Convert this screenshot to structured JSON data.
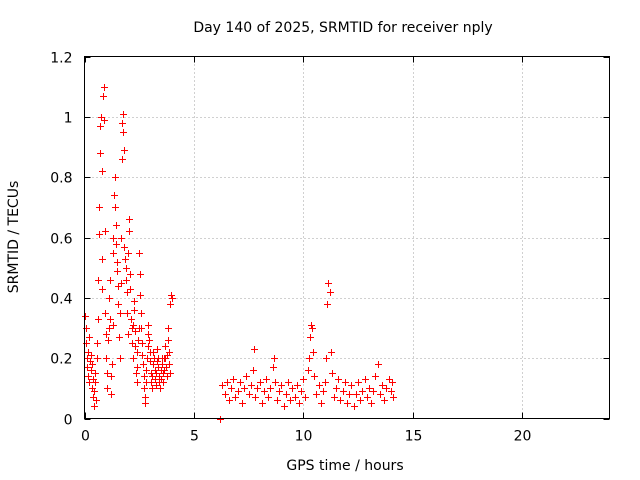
{
  "chart_data": {
    "type": "scatter",
    "title": "Day 140 of 2025, SRMTID for receiver nply",
    "xlabel": "GPS time / hours",
    "ylabel": "SRMTID / TECUs",
    "xlim": [
      0,
      24
    ],
    "ylim": [
      0,
      1.2
    ],
    "xticks": [
      0,
      5,
      10,
      15,
      20
    ],
    "xtick_labels": [
      "0",
      "5",
      "10",
      "15",
      "20"
    ],
    "yticks": [
      0,
      0.2,
      0.4,
      0.6,
      0.8,
      1,
      1.2
    ],
    "ytick_labels": [
      "0",
      "0.2",
      "0.4",
      "0.6",
      "0.8",
      "1",
      "1.2"
    ],
    "grid": true,
    "marker": "+",
    "marker_color": "#ff0000",
    "series": [
      {
        "name": "SRMTID",
        "points": [
          [
            0.02,
            0.34
          ],
          [
            0.05,
            0.3
          ],
          [
            0.08,
            0.25
          ],
          [
            0.1,
            0.2
          ],
          [
            0.12,
            0.17
          ],
          [
            0.15,
            0.22
          ],
          [
            0.18,
            0.14
          ],
          [
            0.2,
            0.27
          ],
          [
            0.22,
            0.12
          ],
          [
            0.25,
            0.19
          ],
          [
            0.28,
            0.21
          ],
          [
            0.3,
            0.16
          ],
          [
            0.32,
            0.1
          ],
          [
            0.35,
            0.18
          ],
          [
            0.38,
            0.13
          ],
          [
            0.4,
            0.07
          ],
          [
            0.42,
            0.09
          ],
          [
            0.45,
            0.04
          ],
          [
            0.48,
            0.15
          ],
          [
            0.5,
            0.12
          ],
          [
            0.52,
            0.06
          ],
          [
            0.55,
            0.2
          ],
          [
            0.58,
            0.25
          ],
          [
            0.6,
            0.33
          ],
          [
            0.62,
            0.46
          ],
          [
            0.65,
            0.61
          ],
          [
            0.68,
            0.7
          ],
          [
            0.7,
            0.88
          ],
          [
            0.72,
            0.97
          ],
          [
            0.75,
            1.0
          ],
          [
            0.78,
            0.82
          ],
          [
            0.8,
            0.53
          ],
          [
            0.82,
            0.43
          ],
          [
            0.85,
            1.07
          ],
          [
            0.88,
            1.1
          ],
          [
            0.9,
            0.99
          ],
          [
            0.92,
            0.62
          ],
          [
            0.95,
            0.35
          ],
          [
            0.98,
            0.28
          ],
          [
            1.0,
            0.2
          ],
          [
            1.02,
            0.15
          ],
          [
            1.05,
            0.1
          ],
          [
            1.08,
            0.26
          ],
          [
            1.1,
            0.3
          ],
          [
            1.12,
            0.4
          ],
          [
            1.15,
            0.46
          ],
          [
            1.18,
            0.33
          ],
          [
            1.2,
            0.14
          ],
          [
            1.22,
            0.08
          ],
          [
            1.25,
            0.18
          ],
          [
            1.28,
            0.31
          ],
          [
            1.3,
            0.55
          ],
          [
            1.32,
            0.6
          ],
          [
            1.35,
            0.74
          ],
          [
            1.38,
            0.8
          ],
          [
            1.4,
            0.7
          ],
          [
            1.42,
            0.64
          ],
          [
            1.45,
            0.58
          ],
          [
            1.48,
            0.52
          ],
          [
            1.5,
            0.49
          ],
          [
            1.52,
            0.44
          ],
          [
            1.55,
            0.38
          ],
          [
            1.58,
            0.27
          ],
          [
            1.6,
            0.2
          ],
          [
            1.62,
            0.35
          ],
          [
            1.65,
            0.45
          ],
          [
            1.68,
            0.6
          ],
          [
            1.7,
            0.86
          ],
          [
            1.72,
            0.98
          ],
          [
            1.75,
            1.01
          ],
          [
            1.78,
            0.95
          ],
          [
            1.8,
            0.89
          ],
          [
            1.82,
            0.57
          ],
          [
            1.85,
            0.53
          ],
          [
            1.88,
            0.5
          ],
          [
            1.9,
            0.46
          ],
          [
            1.92,
            0.42
          ],
          [
            1.95,
            0.35
          ],
          [
            1.98,
            0.28
          ],
          [
            2.0,
            0.55
          ],
          [
            2.02,
            0.62
          ],
          [
            2.05,
            0.66
          ],
          [
            2.08,
            0.48
          ],
          [
            2.1,
            0.43
          ],
          [
            2.12,
            0.33
          ],
          [
            2.15,
            0.3
          ],
          [
            2.18,
            0.25
          ],
          [
            2.2,
            0.2
          ],
          [
            2.22,
            0.31
          ],
          [
            2.25,
            0.36
          ],
          [
            2.28,
            0.39
          ],
          [
            2.3,
            0.29
          ],
          [
            2.32,
            0.24
          ],
          [
            2.35,
            0.15
          ],
          [
            2.38,
            0.12
          ],
          [
            2.4,
            0.17
          ],
          [
            2.42,
            0.22
          ],
          [
            2.45,
            0.26
          ],
          [
            2.48,
            0.3
          ],
          [
            2.5,
            0.55
          ],
          [
            2.52,
            0.48
          ],
          [
            2.55,
            0.41
          ],
          [
            2.58,
            0.35
          ],
          [
            2.6,
            0.3
          ],
          [
            2.62,
            0.25
          ],
          [
            2.65,
            0.21
          ],
          [
            2.68,
            0.18
          ],
          [
            2.7,
            0.14
          ],
          [
            2.72,
            0.1
          ],
          [
            2.75,
            0.07
          ],
          [
            2.78,
            0.05
          ],
          [
            2.8,
            0.12
          ],
          [
            2.82,
            0.16
          ],
          [
            2.85,
            0.2
          ],
          [
            2.88,
            0.24
          ],
          [
            2.9,
            0.28
          ],
          [
            2.92,
            0.31
          ],
          [
            2.95,
            0.26
          ],
          [
            2.98,
            0.22
          ],
          [
            3.0,
            0.19
          ],
          [
            3.02,
            0.15
          ],
          [
            3.05,
            0.12
          ],
          [
            3.08,
            0.1
          ],
          [
            3.1,
            0.14
          ],
          [
            3.12,
            0.18
          ],
          [
            3.15,
            0.22
          ],
          [
            3.18,
            0.2
          ],
          [
            3.2,
            0.16
          ],
          [
            3.22,
            0.13
          ],
          [
            3.25,
            0.11
          ],
          [
            3.28,
            0.15
          ],
          [
            3.3,
            0.19
          ],
          [
            3.32,
            0.23
          ],
          [
            3.35,
            0.2
          ],
          [
            3.38,
            0.17
          ],
          [
            3.4,
            0.14
          ],
          [
            3.42,
            0.12
          ],
          [
            3.45,
            0.1
          ],
          [
            3.48,
            0.13
          ],
          [
            3.5,
            0.16
          ],
          [
            3.52,
            0.2
          ],
          [
            3.55,
            0.18
          ],
          [
            3.58,
            0.15
          ],
          [
            3.6,
            0.12
          ],
          [
            3.62,
            0.16
          ],
          [
            3.65,
            0.2
          ],
          [
            3.68,
            0.24
          ],
          [
            3.7,
            0.2
          ],
          [
            3.72,
            0.17
          ],
          [
            3.75,
            0.14
          ],
          [
            3.78,
            0.21
          ],
          [
            3.8,
            0.26
          ],
          [
            3.82,
            0.3
          ],
          [
            3.85,
            0.22
          ],
          [
            3.88,
            0.18
          ],
          [
            3.9,
            0.15
          ],
          [
            3.92,
            0.38
          ],
          [
            3.95,
            0.41
          ],
          [
            3.98,
            0.4
          ],
          [
            6.2,
            0.0
          ],
          [
            6.3,
            0.11
          ],
          [
            6.4,
            0.08
          ],
          [
            6.5,
            0.12
          ],
          [
            6.6,
            0.06
          ],
          [
            6.7,
            0.1
          ],
          [
            6.8,
            0.13
          ],
          [
            6.9,
            0.07
          ],
          [
            7.0,
            0.09
          ],
          [
            7.1,
            0.12
          ],
          [
            7.2,
            0.05
          ],
          [
            7.3,
            0.1
          ],
          [
            7.4,
            0.14
          ],
          [
            7.5,
            0.08
          ],
          [
            7.6,
            0.11
          ],
          [
            7.7,
            0.16
          ],
          [
            7.75,
            0.23
          ],
          [
            7.8,
            0.07
          ],
          [
            7.9,
            0.1
          ],
          [
            8.0,
            0.12
          ],
          [
            8.1,
            0.05
          ],
          [
            8.2,
            0.09
          ],
          [
            8.3,
            0.13
          ],
          [
            8.4,
            0.07
          ],
          [
            8.5,
            0.1
          ],
          [
            8.6,
            0.17
          ],
          [
            8.65,
            0.2
          ],
          [
            8.7,
            0.12
          ],
          [
            8.8,
            0.06
          ],
          [
            8.9,
            0.09
          ],
          [
            9.0,
            0.11
          ],
          [
            9.1,
            0.04
          ],
          [
            9.2,
            0.08
          ],
          [
            9.3,
            0.12
          ],
          [
            9.4,
            0.06
          ],
          [
            9.5,
            0.1
          ],
          [
            9.6,
            0.07
          ],
          [
            9.7,
            0.11
          ],
          [
            9.8,
            0.05
          ],
          [
            9.9,
            0.09
          ],
          [
            10.0,
            0.13
          ],
          [
            10.1,
            0.07
          ],
          [
            10.2,
            0.16
          ],
          [
            10.25,
            0.2
          ],
          [
            10.3,
            0.27
          ],
          [
            10.35,
            0.31
          ],
          [
            10.4,
            0.3
          ],
          [
            10.45,
            0.22
          ],
          [
            10.5,
            0.14
          ],
          [
            10.6,
            0.08
          ],
          [
            10.7,
            0.11
          ],
          [
            10.8,
            0.05
          ],
          [
            10.9,
            0.09
          ],
          [
            11.0,
            0.12
          ],
          [
            11.05,
            0.2
          ],
          [
            11.1,
            0.38
          ],
          [
            11.15,
            0.45
          ],
          [
            11.2,
            0.42
          ],
          [
            11.25,
            0.22
          ],
          [
            11.3,
            0.15
          ],
          [
            11.4,
            0.07
          ],
          [
            11.5,
            0.1
          ],
          [
            11.6,
            0.13
          ],
          [
            11.7,
            0.06
          ],
          [
            11.8,
            0.09
          ],
          [
            11.9,
            0.12
          ],
          [
            12.0,
            0.05
          ],
          [
            12.1,
            0.08
          ],
          [
            12.2,
            0.11
          ],
          [
            12.3,
            0.04
          ],
          [
            12.4,
            0.08
          ],
          [
            12.5,
            0.12
          ],
          [
            12.6,
            0.06
          ],
          [
            12.7,
            0.09
          ],
          [
            12.8,
            0.13
          ],
          [
            12.9,
            0.07
          ],
          [
            13.0,
            0.1
          ],
          [
            13.1,
            0.05
          ],
          [
            13.2,
            0.09
          ],
          [
            13.3,
            0.14
          ],
          [
            13.4,
            0.18
          ],
          [
            13.5,
            0.08
          ],
          [
            13.6,
            0.11
          ],
          [
            13.7,
            0.06
          ],
          [
            13.8,
            0.1
          ],
          [
            13.9,
            0.13
          ],
          [
            14.0,
            0.09
          ],
          [
            14.05,
            0.12
          ],
          [
            14.1,
            0.07
          ]
        ]
      }
    ]
  }
}
